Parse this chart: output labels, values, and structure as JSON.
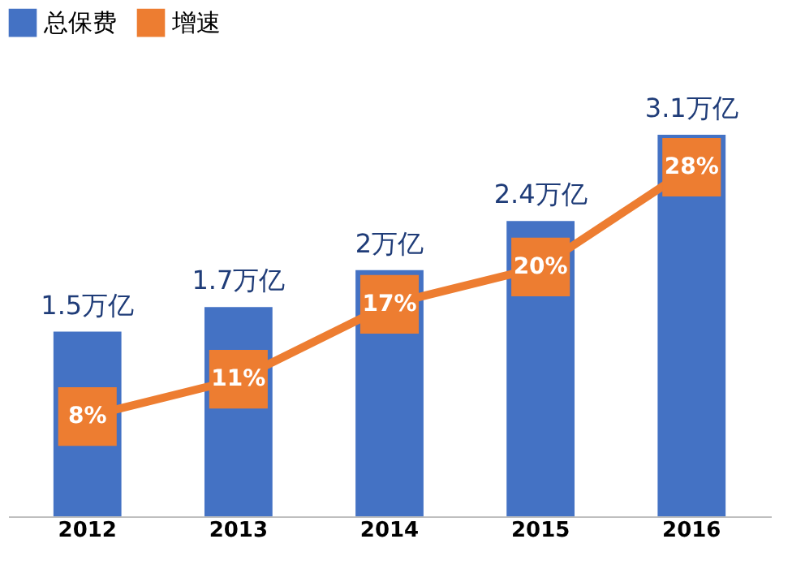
{
  "chart_data": {
    "type": "bar",
    "categories": [
      "2012",
      "2013",
      "2014",
      "2015",
      "2016"
    ],
    "series": [
      {
        "name": "总保费",
        "color": "#4472c4",
        "values": [
          1.5,
          1.7,
          2,
          2.4,
          3.1
        ],
        "value_labels": [
          "1.5万亿",
          "1.7万亿",
          "2万亿",
          "2.4万亿",
          "3.1万亿"
        ]
      },
      {
        "name": "增速",
        "type": "line",
        "axis": "y2",
        "marker": "square",
        "color": "#ed7d31",
        "values": [
          8,
          11,
          17,
          20,
          28
        ],
        "value_labels": [
          "8%",
          "11%",
          "17%",
          "20%",
          "28%"
        ]
      }
    ],
    "tick_labels": "x",
    "grid": false,
    "legend": "top"
  }
}
